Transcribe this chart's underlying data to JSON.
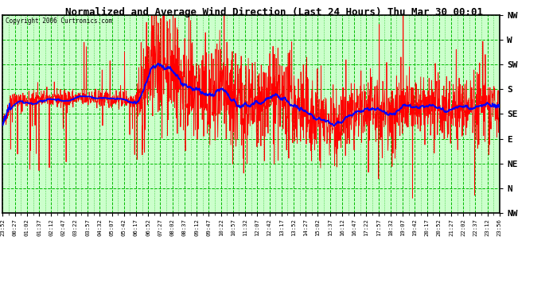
{
  "title": "Normalized and Average Wind Direction (Last 24 Hours) Thu Mar 30 00:01",
  "copyright": "Copyright 2006 Curtronics.com",
  "ytick_labels": [
    "NW",
    "W",
    "SW",
    "S",
    "SE",
    "E",
    "NE",
    "N",
    "NW"
  ],
  "ytick_values": [
    360,
    315,
    270,
    225,
    180,
    135,
    90,
    45,
    0
  ],
  "ylim": [
    0,
    360
  ],
  "bg_color": "#ccffcc",
  "outer_bg_color": "#ffffff",
  "grid_color": "#00bb00",
  "red_line_color": "#ff0000",
  "blue_line_color": "#0000ff",
  "title_color": "#000000",
  "border_color": "#000000",
  "xtick_labels": [
    "23:52",
    "00:27",
    "01:02",
    "01:37",
    "02:12",
    "02:47",
    "03:22",
    "03:57",
    "04:32",
    "05:07",
    "05:42",
    "06:17",
    "06:52",
    "07:27",
    "08:02",
    "08:37",
    "09:12",
    "09:47",
    "10:22",
    "10:57",
    "11:32",
    "12:07",
    "12:42",
    "13:17",
    "13:52",
    "14:27",
    "15:02",
    "15:37",
    "16:12",
    "16:47",
    "17:22",
    "17:57",
    "18:32",
    "19:07",
    "19:42",
    "20:17",
    "20:52",
    "21:27",
    "22:02",
    "22:37",
    "23:12",
    "23:56"
  ]
}
